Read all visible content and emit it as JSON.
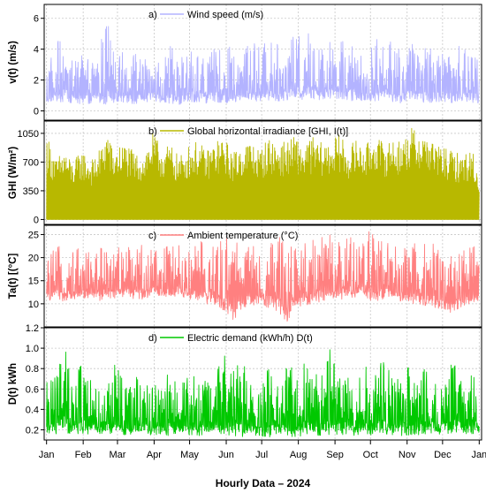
{
  "chart_data": [
    {
      "type": "line",
      "panel_label": "a)",
      "series": [
        {
          "name": "Wind speed (m/s)",
          "color": "#b3b3ff",
          "x_days": [
            0,
            8,
            15,
            22,
            30,
            38,
            46,
            52,
            56,
            60,
            67,
            75,
            82,
            90,
            98,
            105,
            112,
            120,
            128,
            135,
            142,
            150,
            158,
            165,
            172,
            180,
            188,
            195,
            203,
            210,
            217,
            225,
            232,
            240,
            248,
            255,
            262,
            270,
            278,
            285,
            292,
            300,
            308,
            315,
            322,
            330,
            338,
            345,
            352,
            360,
            366
          ],
          "max": [
            3.2,
            4.4,
            5.0,
            3.5,
            4.2,
            3.3,
            4.8,
            6.3,
            4.1,
            3.4,
            4.2,
            3.8,
            3.3,
            4.0,
            3.2,
            4.3,
            3.2,
            4.2,
            4.4,
            3.6,
            4.0,
            3.9,
            4.3,
            3.4,
            4.8,
            4.2,
            4.6,
            4.4,
            3.9,
            5.1,
            4.6,
            5.8,
            4.1,
            4.5,
            5.3,
            4.6,
            4.6,
            3.3,
            4.9,
            4.3,
            4.6,
            3.8,
            4.5,
            4.1,
            4.4,
            3.9,
            4.1,
            3.8,
            5.2,
            4.3,
            3.6
          ],
          "base": [
            0.4,
            0.5,
            0.6,
            0.5,
            0.4,
            0.5,
            0.5,
            0.4,
            0.5,
            0.6,
            0.5,
            0.4,
            0.5,
            0.6,
            0.5,
            0.5,
            0.4,
            0.5,
            0.6,
            0.5,
            0.6,
            0.5,
            0.5,
            0.6,
            0.7,
            0.6,
            0.7,
            0.6,
            0.7,
            0.8,
            0.7,
            0.8,
            0.7,
            0.8,
            0.8,
            0.7,
            0.6,
            0.7,
            0.6,
            0.7,
            0.6,
            0.5,
            0.6,
            0.6,
            0.5,
            0.6,
            0.6,
            0.5,
            0.6,
            0.5,
            0.5
          ]
        }
      ],
      "ylabel": "v(t) (m/s)",
      "ylim": [
        -0.6,
        6.9
      ],
      "yticks": [
        0,
        2,
        4,
        6
      ],
      "ytick_labels": [
        "0",
        "2",
        "4",
        "6"
      ],
      "color": "#b3b3ff"
    },
    {
      "type": "line",
      "panel_label": "b)",
      "series": [
        {
          "name": "Global horizontal irradiance [GHI, I(t)]",
          "color": "#b8b800",
          "x_days": [
            0,
            8,
            15,
            22,
            30,
            38,
            46,
            52,
            56,
            60,
            67,
            75,
            82,
            90,
            98,
            105,
            112,
            120,
            128,
            135,
            142,
            150,
            158,
            165,
            172,
            180,
            188,
            195,
            203,
            210,
            217,
            225,
            232,
            240,
            248,
            255,
            262,
            270,
            278,
            285,
            292,
            300,
            308,
            315,
            322,
            330,
            338,
            345,
            352,
            360,
            366
          ],
          "max": [
            1050,
            730,
            870,
            700,
            850,
            720,
            880,
            1130,
            820,
            900,
            940,
            800,
            820,
            1050,
            880,
            920,
            760,
            900,
            960,
            840,
            950,
            1000,
            820,
            920,
            970,
            850,
            1000,
            940,
            950,
            1020,
            900,
            1010,
            940,
            960,
            1040,
            880,
            980,
            900,
            1070,
            920,
            1000,
            960,
            1120,
            1080,
            1050,
            920,
            870,
            820,
            800,
            860,
            540
          ],
          "base": [
            0,
            0,
            0,
            0,
            0,
            0,
            0,
            0,
            0,
            0,
            0,
            0,
            0,
            0,
            0,
            0,
            0,
            0,
            0,
            0,
            0,
            0,
            0,
            0,
            0,
            0,
            0,
            0,
            0,
            0,
            0,
            0,
            0,
            0,
            0,
            0,
            0,
            0,
            0,
            0,
            0,
            0,
            0,
            0,
            0,
            0,
            0,
            0,
            0,
            0,
            0
          ]
        }
      ],
      "ylabel": "GHI (W/m²)",
      "ylim": [
        -60,
        1200
      ],
      "yticks": [
        0,
        350,
        700,
        1050
      ],
      "ytick_labels": [
        "0",
        "350",
        "700",
        "1050"
      ],
      "color": "#b8b800"
    },
    {
      "type": "line",
      "panel_label": "c)",
      "series": [
        {
          "name": "Ambient temperature (°C)",
          "color": "#ff8080",
          "x_days": [
            0,
            8,
            15,
            22,
            30,
            38,
            46,
            52,
            56,
            60,
            67,
            75,
            82,
            90,
            98,
            105,
            112,
            120,
            128,
            135,
            142,
            150,
            158,
            165,
            172,
            180,
            188,
            195,
            203,
            210,
            217,
            225,
            232,
            240,
            248,
            255,
            262,
            270,
            278,
            285,
            292,
            300,
            308,
            315,
            322,
            330,
            338,
            345,
            352,
            360,
            366
          ],
          "max": [
            20.5,
            22.0,
            23.5,
            21.5,
            22.5,
            21.0,
            23.0,
            22.0,
            21.5,
            22.0,
            23.0,
            22.5,
            23.0,
            22.5,
            23.5,
            22.0,
            24.0,
            22.5,
            23.5,
            24.5,
            23.0,
            25.5,
            24.0,
            23.0,
            22.5,
            23.5,
            24.0,
            25.0,
            23.5,
            24.0,
            24.5,
            24.0,
            25.0,
            25.0,
            25.5,
            26.0,
            24.5,
            25.5,
            26.0,
            23.0,
            24.5,
            23.5,
            22.5,
            24.0,
            22.5,
            23.5,
            22.0,
            22.5,
            21.5,
            23.0,
            21.0
          ],
          "base": [
            10.5,
            11.0,
            10.5,
            11.0,
            11.0,
            11.5,
            10.5,
            11.5,
            11.0,
            11.5,
            11.5,
            11.0,
            11.0,
            11.5,
            11.0,
            11.5,
            11.5,
            11.0,
            10.5,
            10.0,
            9.5,
            8.5,
            6.5,
            8.0,
            9.5,
            10.0,
            9.0,
            8.5,
            6.0,
            9.0,
            9.5,
            10.0,
            10.5,
            10.5,
            11.0,
            11.0,
            11.5,
            11.0,
            10.5,
            11.0,
            11.0,
            10.5,
            10.0,
            10.0,
            9.5,
            9.0,
            7.5,
            8.5,
            9.5,
            10.0,
            10.5
          ]
        }
      ],
      "ylabel": "Ta(t) [(°C]",
      "ylim": [
        5,
        27
      ],
      "yticks": [
        10,
        15,
        20,
        25
      ],
      "ytick_labels": [
        "10",
        "15",
        "20",
        "25"
      ],
      "color": "#ff8080"
    },
    {
      "type": "line",
      "panel_label": "d)",
      "series": [
        {
          "name": "Electric demand (kWh/h) D(t)",
          "color": "#00c800",
          "x_days": [
            0,
            8,
            15,
            22,
            30,
            38,
            46,
            52,
            56,
            60,
            67,
            75,
            82,
            90,
            98,
            105,
            112,
            120,
            128,
            135,
            142,
            150,
            158,
            165,
            172,
            180,
            188,
            195,
            203,
            210,
            217,
            225,
            232,
            240,
            248,
            255,
            262,
            270,
            278,
            285,
            292,
            300,
            308,
            315,
            322,
            330,
            338,
            345,
            352,
            360,
            366
          ],
          "max": [
            0.66,
            0.73,
            1.05,
            0.63,
            0.95,
            0.67,
            0.58,
            0.7,
            0.95,
            0.8,
            0.62,
            0.72,
            0.7,
            0.66,
            0.64,
            0.93,
            0.66,
            0.74,
            0.76,
            0.7,
            0.72,
            0.96,
            0.8,
            0.95,
            0.68,
            0.62,
            0.84,
            0.66,
            0.9,
            0.78,
            0.94,
            0.76,
            0.72,
            1.0,
            0.74,
            0.88,
            0.68,
            0.84,
            0.78,
            0.9,
            0.73,
            0.7,
            0.98,
            0.66,
            0.9,
            0.71,
            0.72,
            0.92,
            0.7,
            0.8,
            0.72
          ],
          "base": [
            0.16,
            0.16,
            0.17,
            0.16,
            0.15,
            0.16,
            0.16,
            0.15,
            0.16,
            0.15,
            0.15,
            0.16,
            0.15,
            0.15,
            0.15,
            0.14,
            0.15,
            0.15,
            0.14,
            0.14,
            0.15,
            0.14,
            0.14,
            0.13,
            0.14,
            0.14,
            0.13,
            0.13,
            0.14,
            0.13,
            0.14,
            0.14,
            0.14,
            0.14,
            0.15,
            0.15,
            0.14,
            0.14,
            0.15,
            0.15,
            0.15,
            0.14,
            0.15,
            0.15,
            0.16,
            0.15,
            0.16,
            0.16,
            0.16,
            0.16,
            0.17
          ]
        }
      ],
      "ylabel": "D(t) kWh",
      "ylim": [
        0.1,
        1.2
      ],
      "yticks": [
        0.2,
        0.4,
        0.6,
        0.8,
        1.0,
        1.2
      ],
      "ytick_labels": [
        "0.2",
        "0.4",
        "0.6",
        "0.8",
        "1.0",
        "1.2"
      ],
      "color": "#00c800"
    }
  ],
  "x_axis": {
    "ticks_day": [
      0,
      31,
      60,
      91,
      121,
      152,
      182,
      213,
      244,
      274,
      305,
      335,
      366
    ],
    "tick_labels": [
      "Jan",
      "Feb",
      "Mar",
      "Apr",
      "May",
      "Jun",
      "Jul",
      "Aug",
      "Sep",
      "Oct",
      "Nov",
      "Dec",
      "Jan"
    ],
    "range_days": [
      -2,
      368
    ],
    "title": "Hourly Data – 2024"
  },
  "grid": true,
  "legend_placement": "top-center"
}
